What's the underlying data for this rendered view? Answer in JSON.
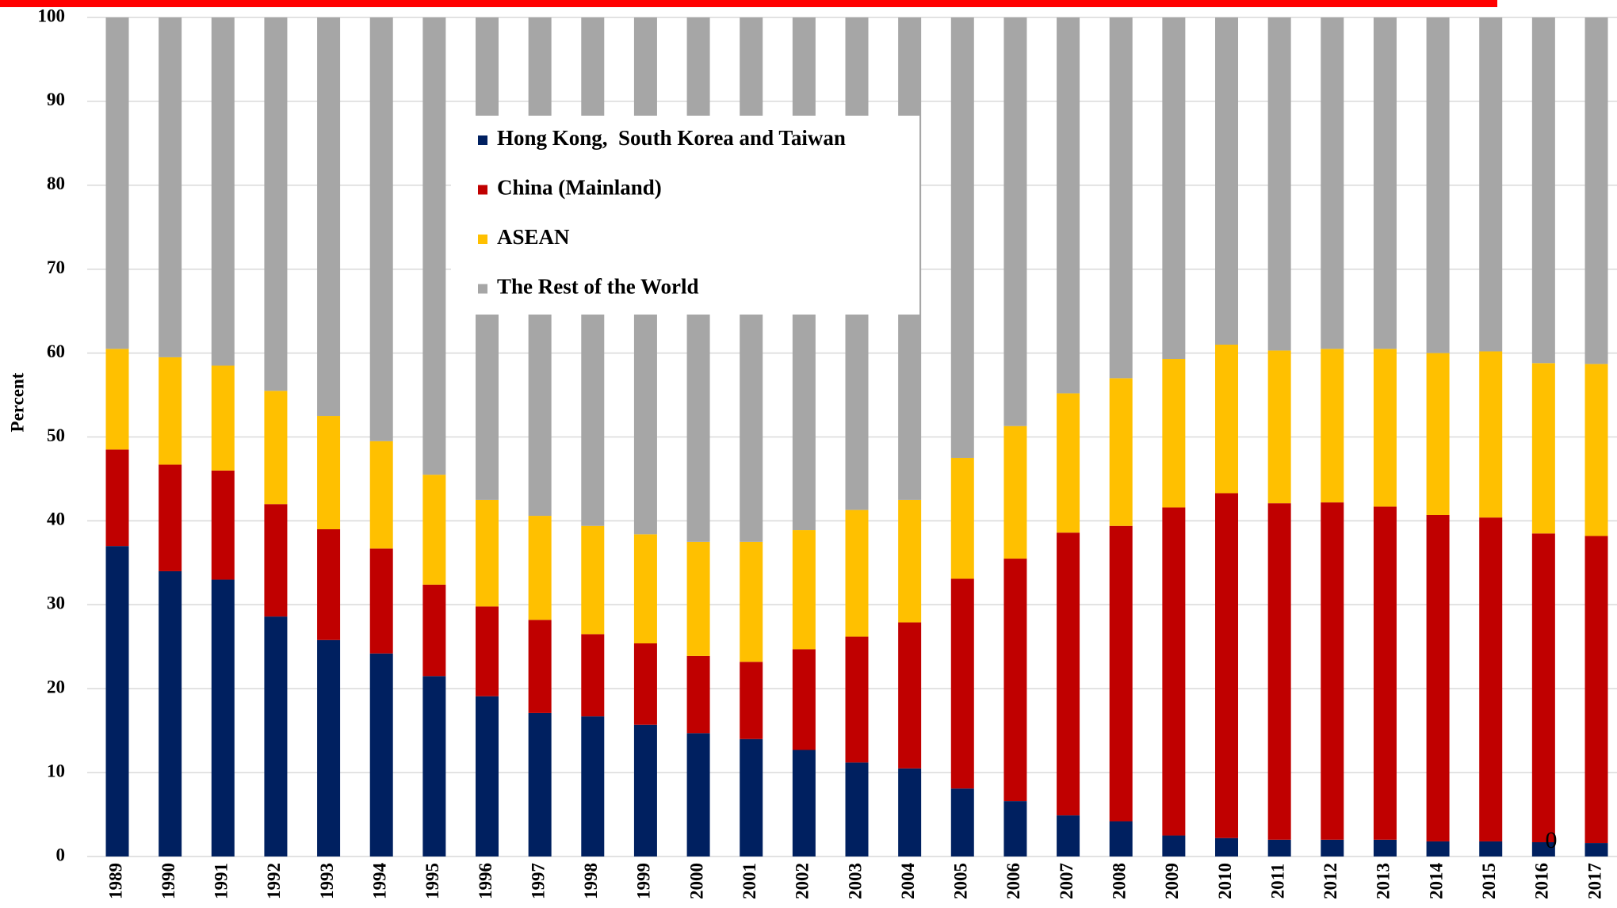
{
  "chart_data": {
    "type": "stacked_bar",
    "y_label": "Percent",
    "page_number": "0",
    "categories": [
      "1989",
      "1990",
      "1991",
      "1992",
      "1993",
      "1994",
      "1995",
      "1996",
      "1997",
      "1998",
      "1999",
      "2000",
      "2001",
      "2002",
      "2003",
      "2004",
      "2005",
      "2006",
      "2007",
      "2008",
      "2009",
      "2010",
      "2011",
      "2012",
      "2013",
      "2014",
      "2015",
      "2016",
      "2017"
    ],
    "series": [
      {
        "name": "Hong Kong,  South Korea and Taiwan",
        "color": "#002060",
        "values": [
          37,
          34,
          33,
          28.6,
          25.8,
          24.2,
          21.5,
          19.1,
          17.1,
          16.7,
          15.7,
          14.7,
          14,
          12.7,
          11.2,
          10.5,
          8.1,
          6.6,
          4.9,
          4.2,
          2.5,
          2.2,
          2,
          2,
          2,
          1.8,
          1.8,
          1.7,
          1.6
        ]
      },
      {
        "name": "China (Mainland)",
        "color": "#c00000",
        "values": [
          11.5,
          12.7,
          13,
          13.4,
          13.2,
          12.5,
          10.9,
          10.7,
          11.1,
          9.8,
          9.7,
          9.2,
          9.2,
          12,
          15,
          17.4,
          25,
          28.9,
          33.7,
          35.2,
          39.1,
          41.1,
          40.1,
          40.2,
          39.7,
          38.9,
          38.6,
          36.8,
          36.6
        ]
      },
      {
        "name": "ASEAN",
        "color": "#ffc000",
        "values": [
          12,
          12.8,
          12.5,
          13.5,
          13.5,
          12.8,
          13.1,
          12.7,
          12.4,
          12.9,
          13,
          13.6,
          14.3,
          14.2,
          15.1,
          14.6,
          14.4,
          15.8,
          16.6,
          17.6,
          17.7,
          17.7,
          18.2,
          18.3,
          18.8,
          19.3,
          19.8,
          20.3,
          20.5
        ]
      },
      {
        "name": "The Rest of the World",
        "color": "#a6a6a6",
        "values": [
          39.5,
          40.5,
          41.5,
          44.5,
          47.5,
          50.5,
          54.5,
          57.5,
          59.4,
          60.6,
          61.6,
          62.5,
          62.5,
          61.1,
          58.7,
          57.5,
          52.5,
          48.7,
          44.8,
          43,
          40.7,
          39,
          39.7,
          39.5,
          39.5,
          40,
          39.8,
          41.2,
          41.3
        ]
      }
    ],
    "ylim": [
      0,
      100
    ],
    "yticks": [
      0,
      10,
      20,
      30,
      40,
      50,
      60,
      70,
      80,
      90,
      100
    ],
    "grid": true
  }
}
